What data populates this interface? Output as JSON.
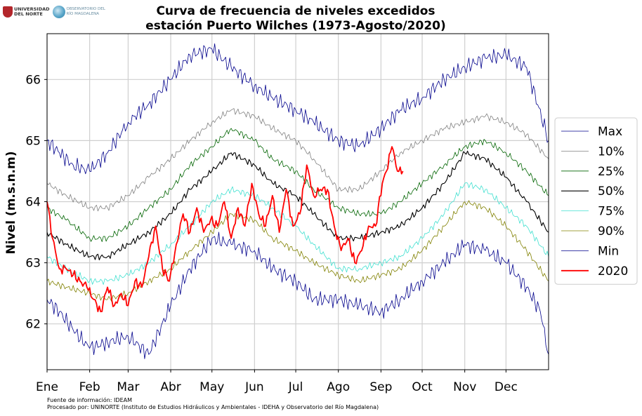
{
  "logos": {
    "university_line1": "UNIVERSIDAD",
    "university_line2": "DEL NORTE",
    "observatory_line1": "OBSERVATORIO DEL",
    "observatory_line2": "RÍO MAGDALENA"
  },
  "footer": {
    "line1": "Fuente de información: IDEAM",
    "line2": "Procesado por: UNINORTE (Instituto de Estudios Hidráulicos y Ambientales - IDEHA y Observatorio del Río Magdalena)"
  },
  "chart_data": {
    "type": "line",
    "title": "Curva de frecuencia de niveles excedidos",
    "subtitle": "estación Puerto Wilches (1973-Agosto/2020)",
    "xlabel": "",
    "ylabel": "Nivel (m.s.n.m)",
    "x_tick_labels": [
      "Ene",
      "Feb",
      "Mar",
      "Abr",
      "May",
      "Jun",
      "Jul",
      "Ago",
      "Sep",
      "Oct",
      "Nov",
      "Dec"
    ],
    "x_ticks_day": [
      1,
      32,
      60,
      91,
      121,
      152,
      182,
      213,
      244,
      274,
      305,
      335
    ],
    "xlim": [
      1,
      366
    ],
    "y_ticks": [
      62,
      63,
      64,
      65,
      66
    ],
    "ylim": [
      61.25,
      66.75
    ],
    "grid": true,
    "legend_position": "right",
    "series": [
      {
        "name": "Max",
        "color": "#00008b",
        "width": 0.8,
        "x": [
          1,
          10,
          20,
          32,
          45,
          60,
          75,
          91,
          105,
          121,
          135,
          152,
          165,
          182,
          195,
          213,
          228,
          244,
          258,
          274,
          290,
          305,
          320,
          335,
          350,
          366
        ],
        "y": [
          65.0,
          64.8,
          64.6,
          64.5,
          64.8,
          65.3,
          65.6,
          66.0,
          66.4,
          66.5,
          66.2,
          65.9,
          65.7,
          65.5,
          65.3,
          65.0,
          64.9,
          65.2,
          65.5,
          65.7,
          66.0,
          66.2,
          66.35,
          66.4,
          66.2,
          65.0
        ]
      },
      {
        "name": "10%",
        "color": "#808080",
        "width": 0.8,
        "x": [
          1,
          15,
          32,
          45,
          60,
          75,
          91,
          105,
          121,
          135,
          152,
          165,
          182,
          195,
          213,
          228,
          244,
          258,
          274,
          290,
          305,
          320,
          335,
          350,
          366
        ],
        "y": [
          64.3,
          64.1,
          63.9,
          63.9,
          64.1,
          64.4,
          64.7,
          65.0,
          65.3,
          65.5,
          65.4,
          65.2,
          65.0,
          64.7,
          64.2,
          64.2,
          64.5,
          64.8,
          65.0,
          65.2,
          65.3,
          65.4,
          65.3,
          65.1,
          64.7
        ]
      },
      {
        "name": "25%",
        "color": "#006400",
        "width": 0.8,
        "x": [
          1,
          15,
          32,
          45,
          60,
          75,
          91,
          105,
          121,
          135,
          152,
          165,
          182,
          195,
          213,
          228,
          244,
          258,
          274,
          290,
          305,
          320,
          335,
          350,
          366
        ],
        "y": [
          63.9,
          63.7,
          63.4,
          63.4,
          63.6,
          63.9,
          64.2,
          64.6,
          64.9,
          65.2,
          65.0,
          64.7,
          64.5,
          64.2,
          63.9,
          63.8,
          63.8,
          64.0,
          64.3,
          64.6,
          64.9,
          65.0,
          64.8,
          64.5,
          64.1
        ]
      },
      {
        "name": "50%",
        "color": "#000000",
        "width": 1.1,
        "x": [
          1,
          15,
          32,
          45,
          60,
          75,
          91,
          105,
          121,
          135,
          152,
          165,
          182,
          195,
          213,
          228,
          244,
          258,
          274,
          290,
          305,
          320,
          335,
          350,
          366
        ],
        "y": [
          63.5,
          63.3,
          63.1,
          63.1,
          63.3,
          63.5,
          63.8,
          64.2,
          64.5,
          64.8,
          64.6,
          64.3,
          64.1,
          63.8,
          63.4,
          63.4,
          63.5,
          63.6,
          63.9,
          64.3,
          64.8,
          64.7,
          64.4,
          64.0,
          63.5
        ]
      },
      {
        "name": "75%",
        "color": "#40e0d0",
        "width": 0.8,
        "x": [
          1,
          15,
          32,
          45,
          60,
          75,
          91,
          105,
          121,
          135,
          152,
          165,
          182,
          195,
          213,
          228,
          244,
          258,
          274,
          290,
          305,
          320,
          335,
          350,
          366
        ],
        "y": [
          63.1,
          62.9,
          62.7,
          62.7,
          62.8,
          63.0,
          63.3,
          63.6,
          64.0,
          64.2,
          64.1,
          63.9,
          63.6,
          63.3,
          62.9,
          62.9,
          63.0,
          63.1,
          63.4,
          63.8,
          64.3,
          64.2,
          63.9,
          63.6,
          63.1
        ]
      },
      {
        "name": "90%",
        "color": "#808000",
        "width": 0.8,
        "x": [
          1,
          15,
          32,
          45,
          60,
          75,
          91,
          105,
          121,
          135,
          152,
          165,
          182,
          195,
          213,
          228,
          244,
          258,
          274,
          290,
          305,
          320,
          335,
          350,
          366
        ],
        "y": [
          62.7,
          62.6,
          62.5,
          62.4,
          62.5,
          62.7,
          62.9,
          63.2,
          63.5,
          63.8,
          63.7,
          63.4,
          63.2,
          63.0,
          62.8,
          62.7,
          62.8,
          62.9,
          63.2,
          63.6,
          64.0,
          63.9,
          63.6,
          63.2,
          62.7
        ]
      },
      {
        "name": "Min",
        "color": "#00008b",
        "width": 0.8,
        "x": [
          1,
          10,
          20,
          32,
          45,
          60,
          75,
          91,
          105,
          121,
          135,
          152,
          165,
          182,
          195,
          213,
          228,
          244,
          258,
          274,
          290,
          305,
          320,
          335,
          350,
          360,
          366
        ],
        "y": [
          62.4,
          62.2,
          61.9,
          61.6,
          61.7,
          61.8,
          61.5,
          62.3,
          62.9,
          63.4,
          63.3,
          63.2,
          62.9,
          62.7,
          62.4,
          62.4,
          62.3,
          62.2,
          62.4,
          62.7,
          63.0,
          63.3,
          63.2,
          63.0,
          62.6,
          62.2,
          61.5
        ]
      },
      {
        "name": "2020",
        "color": "#ff0000",
        "width": 1.8,
        "x": [
          1,
          5,
          10,
          15,
          20,
          25,
          30,
          35,
          40,
          45,
          50,
          55,
          60,
          65,
          70,
          75,
          80,
          85,
          90,
          95,
          100,
          105,
          110,
          115,
          120,
          125,
          130,
          135,
          140,
          145,
          150,
          155,
          160,
          165,
          170,
          175,
          180,
          185,
          190,
          195,
          200,
          205,
          210,
          215,
          220,
          225,
          230,
          235,
          240,
          245,
          248,
          252,
          256,
          260
        ],
        "y": [
          64.0,
          63.4,
          62.9,
          62.9,
          62.8,
          62.7,
          62.6,
          62.4,
          62.2,
          62.6,
          62.3,
          62.5,
          62.3,
          62.7,
          62.6,
          63.1,
          63.6,
          62.9,
          62.7,
          63.3,
          63.8,
          63.5,
          63.9,
          63.5,
          63.7,
          63.6,
          64.0,
          63.4,
          63.9,
          63.6,
          64.3,
          63.8,
          63.6,
          64.1,
          63.5,
          64.2,
          63.6,
          63.8,
          64.6,
          64.1,
          64.2,
          64.2,
          63.6,
          63.2,
          63.4,
          63.0,
          63.2,
          63.6,
          63.6,
          64.3,
          64.5,
          64.9,
          64.5,
          64.5
        ]
      }
    ]
  }
}
